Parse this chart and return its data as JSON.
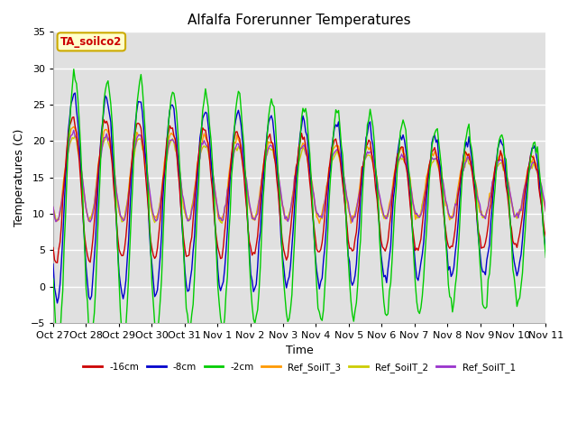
{
  "title": "Alfalfa Forerunner Temperatures",
  "ylabel": "Temperatures (C)",
  "xlabel": "Time",
  "ylim": [
    -5,
    35
  ],
  "background_color": "#e8e8e8",
  "plot_bg": "#e0e0e0",
  "annotation_text": "TA_soilco2",
  "annotation_color": "#cc0000",
  "annotation_bg": "#ffffcc",
  "annotation_border": "#ccaa00",
  "series_colors": {
    "neg16cm": "#cc0000",
    "neg8cm": "#0000cc",
    "neg2cm": "#00cc00",
    "ref3": "#ff9900",
    "ref2": "#cccc00",
    "ref1": "#9933cc"
  },
  "legend_labels": [
    "-16cm",
    "-8cm",
    "-2cm",
    "Ref_SoilT_3",
    "Ref_SoilT_2",
    "Ref_SoilT_1"
  ],
  "xtick_labels": [
    "Oct 27",
    "Oct 28",
    "Oct 29",
    "Oct 30",
    "Oct 31",
    "Nov 1",
    "Nov 2",
    "Nov 3",
    "Nov 4",
    "Nov 5",
    "Nov 6",
    "Nov 7",
    "Nov 8",
    "Nov 9",
    "Nov 10",
    "Nov 11"
  ],
  "days": 15
}
